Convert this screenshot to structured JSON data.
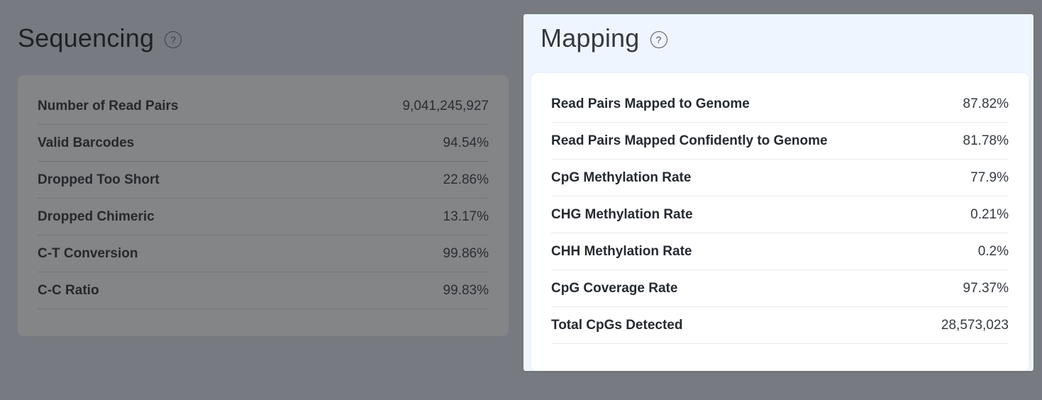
{
  "page": {
    "background_color": "#777b81",
    "highlight_background_color": "#eff5fe"
  },
  "sequencing": {
    "title": "Sequencing",
    "help_icon": "?",
    "rows": [
      {
        "label": "Number of Read Pairs",
        "value": "9,041,245,927"
      },
      {
        "label": "Valid Barcodes",
        "value": "94.54%"
      },
      {
        "label": "Dropped Too Short",
        "value": "22.86%"
      },
      {
        "label": "Dropped Chimeric",
        "value": "13.17%"
      },
      {
        "label": "C-T Conversion",
        "value": "99.86%"
      },
      {
        "label": "C-C Ratio",
        "value": "99.83%"
      }
    ]
  },
  "mapping": {
    "title": "Mapping",
    "help_icon": "?",
    "rows": [
      {
        "label": "Read Pairs Mapped to Genome",
        "value": "87.82%"
      },
      {
        "label": "Read Pairs Mapped Confidently to Genome",
        "value": "81.78%"
      },
      {
        "label": "CpG Methylation Rate",
        "value": "77.9%"
      },
      {
        "label": "CHG Methylation Rate",
        "value": "0.21%"
      },
      {
        "label": "CHH Methylation Rate",
        "value": "0.2%"
      },
      {
        "label": "CpG Coverage Rate",
        "value": "97.37%"
      },
      {
        "label": "Total CpGs Detected",
        "value": "28,573,023"
      }
    ]
  }
}
